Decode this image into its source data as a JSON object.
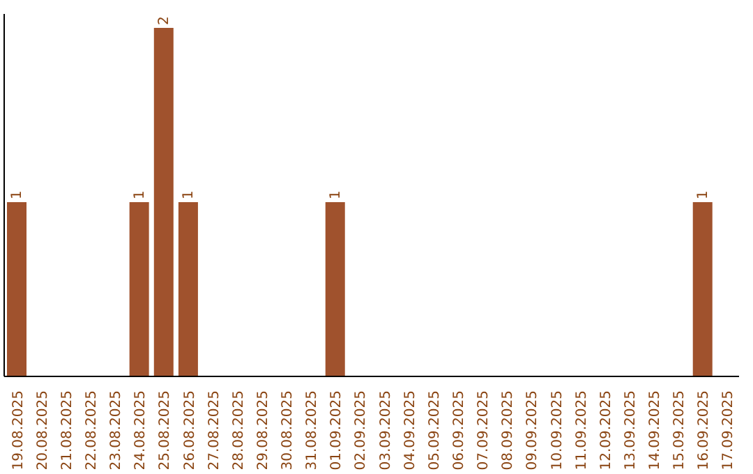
{
  "chart_data": {
    "type": "bar",
    "categories": [
      "19.08.2025",
      "20.08.2025",
      "21.08.2025",
      "22.08.2025",
      "23.08.2025",
      "24.08.2025",
      "25.08.2025",
      "26.08.2025",
      "27.08.2025",
      "28.08.2025",
      "29.08.2025",
      "30.08.2025",
      "31.08.2025",
      "01.09.2025",
      "02.09.2025",
      "03.09.2025",
      "04.09.2025",
      "05.09.2025",
      "06.09.2025",
      "07.09.2025",
      "08.09.2025",
      "09.09.2025",
      "10.09.2025",
      "11.09.2025",
      "12.09.2025",
      "13.09.2025",
      "14.09.2025",
      "15.09.2025",
      "16.09.2025",
      "17.09.2025"
    ],
    "values": [
      1,
      0,
      0,
      0,
      0,
      1,
      2,
      1,
      0,
      0,
      0,
      0,
      0,
      1,
      0,
      0,
      0,
      0,
      0,
      0,
      0,
      0,
      0,
      0,
      0,
      0,
      0,
      0,
      1,
      0
    ],
    "value_labels": [
      "1",
      null,
      null,
      null,
      null,
      "1",
      "2",
      "1",
      null,
      null,
      null,
      null,
      null,
      "1",
      null,
      null,
      null,
      null,
      null,
      null,
      null,
      null,
      null,
      null,
      null,
      null,
      null,
      null,
      "1",
      null
    ],
    "color": "#a0522d"
  }
}
